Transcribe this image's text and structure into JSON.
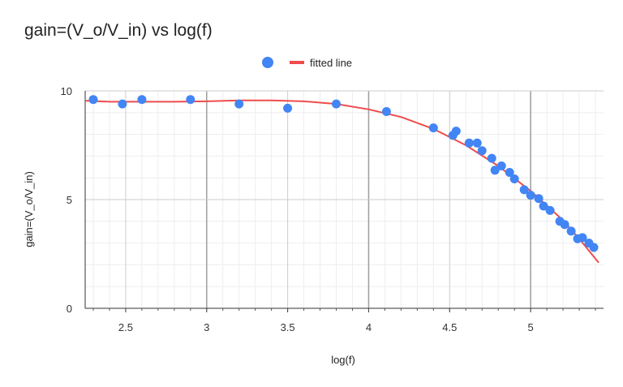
{
  "chart_data": {
    "type": "scatter",
    "title": "gain=(V_o/V_in) vs log(f)",
    "xlabel": "log(f)",
    "ylabel": "gain=(V_o/V_in)",
    "xlim": [
      2.25,
      5.45
    ],
    "ylim": [
      0,
      10
    ],
    "x_ticks": [
      2.5,
      3,
      3.5,
      4,
      4.5,
      5
    ],
    "x_tick_labels": [
      "2.5",
      "3",
      "3.5",
      "4",
      "4.5",
      "5"
    ],
    "y_ticks": [
      0,
      5,
      10
    ],
    "y_tick_labels": [
      "0",
      "5",
      "10"
    ],
    "grid": true,
    "legend_position": "top-center",
    "series": [
      {
        "kind": "points",
        "color": "#4285f4",
        "x": [
          2.3,
          2.48,
          2.6,
          2.9,
          3.2,
          3.5,
          3.8,
          4.11,
          4.4,
          4.52,
          4.54,
          4.62,
          4.67,
          4.7,
          4.76,
          4.78,
          4.82,
          4.87,
          4.9,
          4.96,
          5.0,
          5.05,
          5.08,
          5.12,
          5.18,
          5.21,
          5.25,
          5.29,
          5.32,
          5.36,
          5.39
        ],
        "y": [
          9.6,
          9.4,
          9.6,
          9.6,
          9.4,
          9.2,
          9.4,
          9.05,
          8.3,
          7.95,
          8.15,
          7.6,
          7.6,
          7.25,
          6.9,
          6.35,
          6.55,
          6.25,
          5.95,
          5.45,
          5.2,
          5.05,
          4.7,
          4.5,
          4.0,
          3.85,
          3.55,
          3.2,
          3.25,
          3.0,
          2.8
        ]
      },
      {
        "name": "fitted line",
        "kind": "line",
        "color": "#ef4c4c",
        "x": [
          2.25,
          2.4,
          2.6,
          2.8,
          3.0,
          3.2,
          3.4,
          3.6,
          3.8,
          4.0,
          4.2,
          4.4,
          4.6,
          4.8,
          5.0,
          5.2,
          5.3,
          5.42
        ],
        "y": [
          9.55,
          9.5,
          9.5,
          9.5,
          9.52,
          9.56,
          9.56,
          9.52,
          9.4,
          9.15,
          8.8,
          8.25,
          7.5,
          6.55,
          5.4,
          4.05,
          3.2,
          2.1
        ]
      }
    ]
  }
}
